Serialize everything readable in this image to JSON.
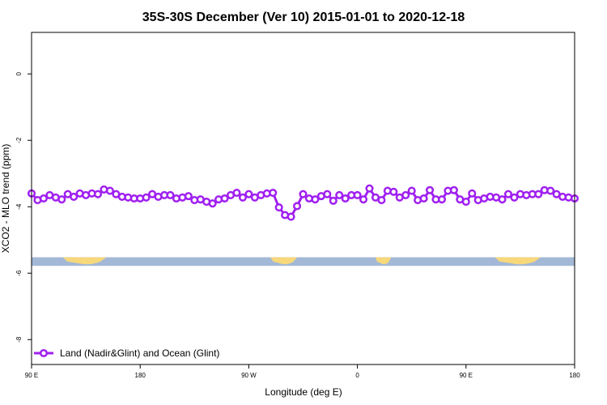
{
  "chart_data": {
    "type": "line",
    "title": "35S-30S December (Ver 10)   2015-01-01 to 2020-12-18",
    "xlabel": "Longitude (deg E)",
    "ylabel": "XCO2 - MLO trend (ppm)",
    "xlim": [
      90,
      540
    ],
    "ylim": [
      -8.75,
      1.25
    ],
    "x_ticks": [
      {
        "value": 90,
        "label": "90 E"
      },
      {
        "value": 180,
        "label": "180"
      },
      {
        "value": 270,
        "label": "90 W"
      },
      {
        "value": 360,
        "label": "0"
      },
      {
        "value": 450,
        "label": "90 E"
      },
      {
        "value": 540,
        "label": "180"
      }
    ],
    "y_ticks": [
      {
        "value": 0,
        "label": "0"
      },
      {
        "value": -2,
        "label": "-2"
      },
      {
        "value": -4,
        "label": "-4"
      },
      {
        "value": -6,
        "label": "-6"
      },
      {
        "value": -8,
        "label": "-8"
      }
    ],
    "grid": false,
    "legend_position": "bottom-left",
    "series": [
      {
        "name": "Land (Nadir&Glint) and Ocean (Glint)",
        "color": "#a020f0",
        "x": [
          90,
          95,
          100,
          105,
          110,
          115,
          120,
          125,
          130,
          135,
          140,
          145,
          150,
          155,
          160,
          165,
          170,
          175,
          180,
          185,
          190,
          195,
          200,
          205,
          210,
          215,
          220,
          225,
          230,
          235,
          240,
          245,
          250,
          255,
          260,
          265,
          270,
          275,
          280,
          285,
          290,
          295,
          300,
          305,
          310,
          315,
          320,
          325,
          330,
          335,
          340,
          345,
          350,
          355,
          360,
          365,
          370,
          375,
          380,
          385,
          390,
          395,
          400,
          405,
          410,
          415,
          420,
          425,
          430,
          435,
          440,
          445,
          450,
          455,
          460,
          465,
          470,
          475,
          480,
          485,
          490,
          495,
          500,
          505,
          510,
          515,
          520,
          525,
          530,
          535,
          540
        ],
        "y": [
          -3.6,
          -3.8,
          -3.75,
          -3.65,
          -3.72,
          -3.78,
          -3.62,
          -3.7,
          -3.6,
          -3.65,
          -3.6,
          -3.62,
          -3.48,
          -3.52,
          -3.62,
          -3.7,
          -3.72,
          -3.75,
          -3.75,
          -3.72,
          -3.62,
          -3.7,
          -3.65,
          -3.65,
          -3.75,
          -3.72,
          -3.68,
          -3.8,
          -3.78,
          -3.85,
          -3.9,
          -3.78,
          -3.75,
          -3.65,
          -3.58,
          -3.72,
          -3.62,
          -3.72,
          -3.65,
          -3.6,
          -3.58,
          -4.02,
          -4.25,
          -4.3,
          -3.98,
          -3.62,
          -3.75,
          -3.78,
          -3.68,
          -3.62,
          -3.82,
          -3.65,
          -3.75,
          -3.65,
          -3.65,
          -3.78,
          -3.45,
          -3.72,
          -3.8,
          -3.52,
          -3.55,
          -3.72,
          -3.65,
          -3.52,
          -3.8,
          -3.75,
          -3.5,
          -3.78,
          -3.78,
          -3.52,
          -3.5,
          -3.78,
          -3.85,
          -3.6,
          -3.8,
          -3.75,
          -3.7,
          -3.72,
          -3.78,
          -3.62,
          -3.72,
          -3.62,
          -3.65,
          -3.62,
          -3.62,
          -3.5,
          -3.52,
          -3.62,
          -3.7,
          -3.72,
          -3.75
        ]
      }
    ],
    "map_strip": {
      "y_top": -5.52,
      "y_bottom": -5.78,
      "ocean_color": "#a3b8d6",
      "land_color": "#f7d87a",
      "land_ranges": [
        [
          116,
          152
        ],
        [
          288,
          310
        ],
        [
          375,
          388
        ],
        [
          474,
          512
        ]
      ]
    }
  }
}
